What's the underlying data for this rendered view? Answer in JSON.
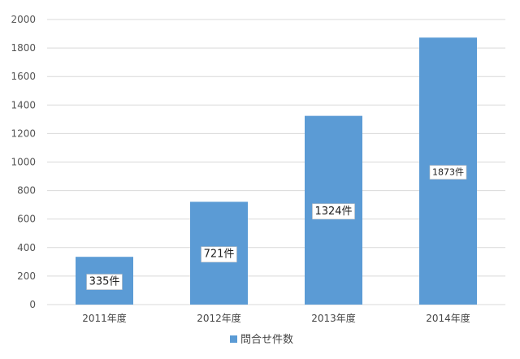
{
  "chart_data": {
    "type": "bar",
    "categories": [
      "2011年度",
      "2012年度",
      "2013年度",
      "2014年度"
    ],
    "series": [
      {
        "name": "問合せ件数",
        "values": [
          335,
          721,
          1324,
          1873
        ],
        "data_labels": [
          "335件",
          "721件",
          "1324件",
          "1873件"
        ]
      }
    ],
    "ylim": [
      0,
      2000
    ],
    "yticks": [
      0,
      200,
      400,
      600,
      800,
      1000,
      1200,
      1400,
      1600,
      1800,
      2000
    ],
    "grid": true,
    "legend_position": "bottom",
    "colors": {
      "bar": "#5b9bd5",
      "grid": "#d9d9d9",
      "label_box": "#ffffff",
      "label_border": "#bfbfbf"
    }
  }
}
